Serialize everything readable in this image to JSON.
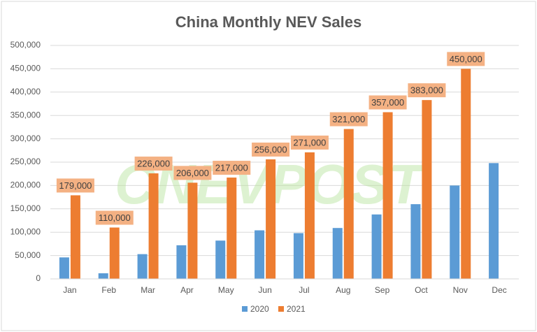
{
  "chart_data": {
    "type": "bar",
    "title": "China Monthly NEV Sales",
    "watermark": "CNEVPOST",
    "categories": [
      "Jan",
      "Feb",
      "Mar",
      "Apr",
      "May",
      "Jun",
      "Jul",
      "Aug",
      "Sep",
      "Oct",
      "Nov",
      "Dec"
    ],
    "series": [
      {
        "name": "2020",
        "color": "#5b9bd5",
        "values": [
          46000,
          12000,
          53000,
          72000,
          82000,
          104000,
          98000,
          109000,
          138000,
          160000,
          200000,
          248000
        ]
      },
      {
        "name": "2021",
        "color": "#ed7d31",
        "values": [
          179000,
          110000,
          226000,
          206000,
          217000,
          256000,
          271000,
          321000,
          357000,
          383000,
          450000,
          null
        ],
        "value_labels": [
          "179,000",
          "110,000",
          "226,000",
          "206,000",
          "217,000",
          "256,000",
          "271,000",
          "321,000",
          "357,000",
          "383,000",
          "450,000",
          null
        ],
        "label_fill": "#f4b183"
      }
    ],
    "ylim": [
      0,
      500000
    ],
    "yticks": [
      0,
      {
        "value": 50000,
        "label": "50,000"
      },
      {
        "value": 100000,
        "label": "100,000"
      },
      {
        "value": 150000,
        "label": "150,000"
      },
      {
        "value": 200000,
        "label": "200,000"
      },
      {
        "value": 250000,
        "label": "250,000"
      },
      {
        "value": 300000,
        "label": "300,000"
      },
      {
        "value": 350000,
        "label": "350,000"
      },
      {
        "value": 400000,
        "label": "400,000"
      },
      {
        "value": 450000,
        "label": "450,000"
      },
      {
        "value": 500000,
        "label": "500,000"
      }
    ],
    "grid": true,
    "legend": "bottom"
  }
}
